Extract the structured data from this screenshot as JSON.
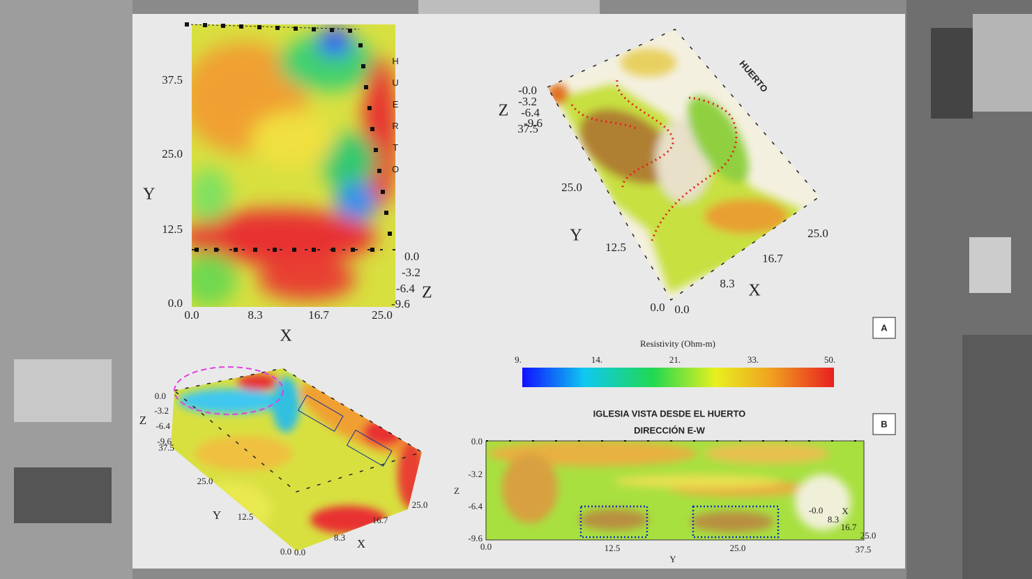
{
  "panel_top_left": {
    "axis_y": "Y",
    "axis_x": "X",
    "axis_z": "Z",
    "y_ticks": [
      "37.5",
      "25.0",
      "12.5",
      "0.0"
    ],
    "x_ticks": [
      "0.0",
      "8.3",
      "16.7",
      "25.0"
    ],
    "z_ticks": [
      "0.0",
      "-3.2",
      "-6.4",
      "-9.6"
    ],
    "side_label": "HUERTO"
  },
  "panel_top_right": {
    "axis_y": "Y",
    "axis_x": "X",
    "axis_z": "Z",
    "z_ticks": [
      "-0.0",
      "-3.2",
      "-6.4",
      "-9.6",
      "37.5"
    ],
    "y_ticks": [
      "25.0",
      "12.5",
      "0.0"
    ],
    "x_ticks": [
      "0.0",
      "8.3",
      "16.7",
      "25.0"
    ],
    "side_label": "HUERTO"
  },
  "label_a": "A",
  "label_b": "B",
  "colorbar": {
    "title": "Resistivity (Ohm-m)",
    "ticks": [
      "9.",
      "14.",
      "21.",
      "33.",
      "50."
    ]
  },
  "panel_bottom_left": {
    "axis_y": "Y",
    "axis_x": "X",
    "axis_z": "Z",
    "z_ticks": [
      "0.0",
      "-3.2",
      "-6.4",
      "-9.6",
      "37.5"
    ],
    "y_ticks": [
      "25.0",
      "12.5",
      "0.0"
    ],
    "x_ticks": [
      "0.0",
      "8.3",
      "16.7",
      "25.0"
    ]
  },
  "panel_bottom_right": {
    "title_lines": [
      "IGLESIA VISTA DESDE EL HUERTO",
      "DIRECCIÓN E-W"
    ],
    "axis_y": "Y",
    "axis_x": "X",
    "axis_z": "Z",
    "z_ticks": [
      "0.0",
      "-3.2",
      "-6.4",
      "-9.6"
    ],
    "y_ticks": [
      "0.0",
      "12.5",
      "25.0",
      "37.5"
    ],
    "x_ticks": [
      "-0.0",
      "8.3",
      "16.7",
      "25.0"
    ]
  }
}
